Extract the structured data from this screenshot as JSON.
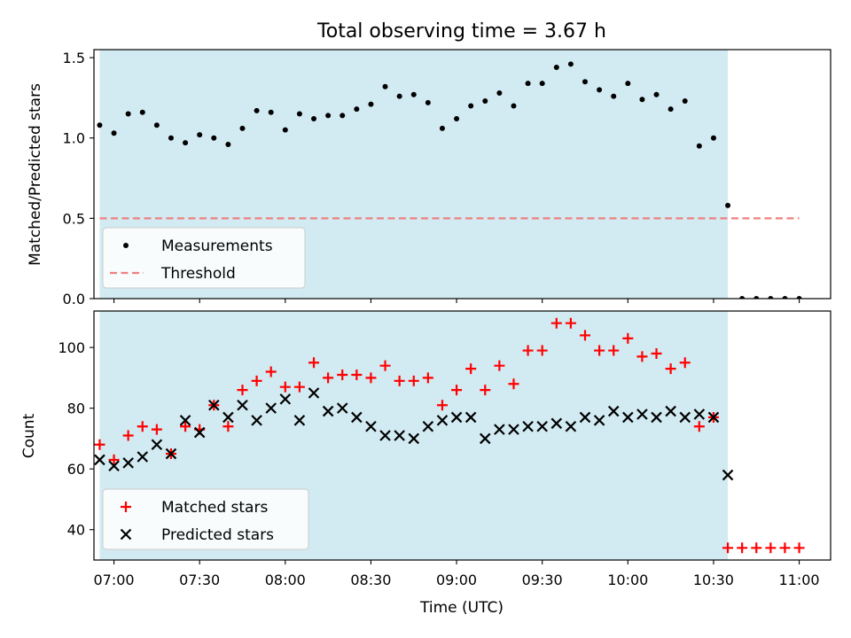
{
  "chart_data": [
    {
      "type": "scatter",
      "title": "Total observing time = 3.67 h",
      "ylabel": "Matched/Predicted stars",
      "xlim": [
        "06:53",
        "11:11"
      ],
      "ylim": [
        0,
        1.55
      ],
      "yticks": [
        "0.0",
        "0.5",
        "1.0",
        "1.5"
      ],
      "grid": false,
      "legend": "lower-left",
      "shaded_span": {
        "start": "06:55",
        "end": "10:35",
        "color": "#add8e6"
      },
      "series": [
        {
          "name": "Measurements",
          "marker": "dot",
          "color": "#000000",
          "x": [
            "06:55",
            "07:00",
            "07:05",
            "07:10",
            "07:15",
            "07:20",
            "07:25",
            "07:30",
            "07:35",
            "07:40",
            "07:45",
            "07:50",
            "07:55",
            "08:00",
            "08:05",
            "08:10",
            "08:15",
            "08:20",
            "08:25",
            "08:30",
            "08:35",
            "08:40",
            "08:45",
            "08:50",
            "08:55",
            "09:00",
            "09:05",
            "09:10",
            "09:15",
            "09:20",
            "09:25",
            "09:30",
            "09:35",
            "09:40",
            "09:45",
            "09:50",
            "09:55",
            "10:00",
            "10:05",
            "10:10",
            "10:15",
            "10:20",
            "10:25",
            "10:30",
            "10:35",
            "10:40",
            "10:45",
            "10:50",
            "10:55",
            "11:00"
          ],
          "y": [
            1.08,
            1.03,
            1.15,
            1.16,
            1.08,
            1.0,
            0.97,
            1.02,
            1.0,
            0.96,
            1.06,
            1.17,
            1.16,
            1.05,
            1.15,
            1.12,
            1.14,
            1.14,
            1.18,
            1.21,
            1.32,
            1.26,
            1.27,
            1.22,
            1.06,
            1.12,
            1.2,
            1.23,
            1.28,
            1.2,
            1.34,
            1.34,
            1.44,
            1.46,
            1.35,
            1.3,
            1.26,
            1.34,
            1.24,
            1.27,
            1.18,
            1.23,
            0.95,
            1.0,
            0.58,
            0,
            0,
            0,
            0,
            0
          ]
        },
        {
          "name": "Threshold",
          "marker": "dashed-line",
          "color": "#f08080",
          "x": [
            "06:55",
            "11:00"
          ],
          "y": [
            0.5,
            0.5
          ]
        }
      ]
    },
    {
      "type": "scatter",
      "xlabel": "Time (UTC)",
      "ylabel": "Count",
      "xlim": [
        "06:53",
        "11:11"
      ],
      "ylim": [
        30,
        112
      ],
      "yticks": [
        "40",
        "60",
        "80",
        "100"
      ],
      "xticks": [
        "07:00",
        "07:30",
        "08:00",
        "08:30",
        "09:00",
        "09:30",
        "10:00",
        "10:30",
        "11:00"
      ],
      "grid": false,
      "legend": "lower-left",
      "shaded_span": {
        "start": "06:55",
        "end": "10:35",
        "color": "#add8e6"
      },
      "series": [
        {
          "name": "Matched stars",
          "marker": "plus",
          "color": "#ff0000",
          "x": [
            "06:55",
            "07:00",
            "07:05",
            "07:10",
            "07:15",
            "07:20",
            "07:25",
            "07:30",
            "07:35",
            "07:40",
            "07:45",
            "07:50",
            "07:55",
            "08:00",
            "08:05",
            "08:10",
            "08:15",
            "08:20",
            "08:25",
            "08:30",
            "08:35",
            "08:40",
            "08:45",
            "08:50",
            "08:55",
            "09:00",
            "09:05",
            "09:10",
            "09:15",
            "09:20",
            "09:25",
            "09:30",
            "09:35",
            "09:40",
            "09:45",
            "09:50",
            "09:55",
            "10:00",
            "10:05",
            "10:10",
            "10:15",
            "10:20",
            "10:25",
            "10:30",
            "10:35",
            "10:40",
            "10:45",
            "10:50",
            "10:55",
            "11:00"
          ],
          "y": [
            68,
            63,
            71,
            74,
            73,
            65,
            74,
            73,
            81,
            74,
            86,
            89,
            92,
            87,
            87,
            95,
            90,
            91,
            91,
            90,
            94,
            89,
            89,
            90,
            81,
            86,
            93,
            86,
            94,
            88,
            99,
            99,
            108,
            108,
            104,
            99,
            99,
            103,
            97,
            98,
            93,
            95,
            74,
            77,
            34,
            34,
            34,
            34,
            34,
            34
          ]
        },
        {
          "name": "Predicted stars",
          "marker": "x",
          "color": "#000000",
          "x": [
            "06:55",
            "07:00",
            "07:05",
            "07:10",
            "07:15",
            "07:20",
            "07:25",
            "07:30",
            "07:35",
            "07:40",
            "07:45",
            "07:50",
            "07:55",
            "08:00",
            "08:05",
            "08:10",
            "08:15",
            "08:20",
            "08:25",
            "08:30",
            "08:35",
            "08:40",
            "08:45",
            "08:50",
            "08:55",
            "09:00",
            "09:05",
            "09:10",
            "09:15",
            "09:20",
            "09:25",
            "09:30",
            "09:35",
            "09:40",
            "09:45",
            "09:50",
            "09:55",
            "10:00",
            "10:05",
            "10:10",
            "10:15",
            "10:20",
            "10:25",
            "10:30",
            "10:35"
          ],
          "y": [
            63,
            61,
            62,
            64,
            68,
            65,
            76,
            72,
            81,
            77,
            81,
            76,
            80,
            83,
            76,
            85,
            79,
            80,
            77,
            74,
            71,
            71,
            70,
            74,
            76,
            77,
            77,
            70,
            73,
            73,
            74,
            74,
            75,
            74,
            77,
            76,
            79,
            77,
            78,
            77,
            79,
            77,
            78,
            77,
            58
          ]
        }
      ]
    }
  ]
}
